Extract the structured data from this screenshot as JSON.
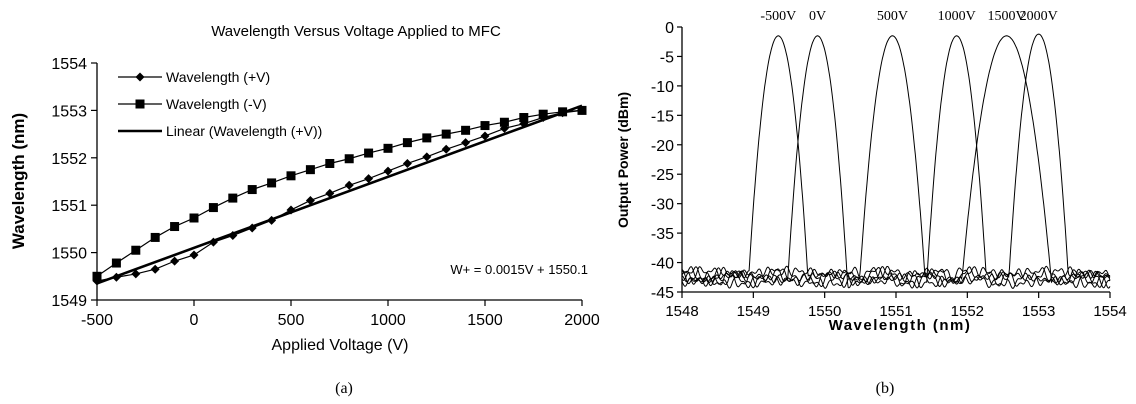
{
  "chart_data": [
    {
      "type": "line",
      "title": "Wavelength Versus Voltage Applied to MFC",
      "xlabel": "Applied Voltage (V)",
      "ylabel": "Wavelength (nm)",
      "xlim": [
        -500,
        2000
      ],
      "ylim": [
        1549,
        1554
      ],
      "x_ticks": [
        "-500",
        "0",
        "500",
        "1000",
        "1500",
        "2000"
      ],
      "y_ticks": [
        "1549",
        "1550",
        "1551",
        "1552",
        "1553",
        "1554"
      ],
      "grid": false,
      "legend_position": "top-left",
      "series": [
        {
          "name": "Wavelength (+V)",
          "marker": "diamond",
          "x": [
            -500,
            -400,
            -300,
            -200,
            -100,
            0,
            100,
            200,
            300,
            400,
            500,
            600,
            700,
            800,
            900,
            1000,
            1100,
            1200,
            1300,
            1400,
            1500,
            1600,
            1700,
            1800,
            1900,
            2000
          ],
          "y": [
            1549.4,
            1549.48,
            1549.55,
            1549.65,
            1549.82,
            1549.95,
            1550.22,
            1550.36,
            1550.52,
            1550.68,
            1550.9,
            1551.1,
            1551.25,
            1551.42,
            1551.56,
            1551.72,
            1551.88,
            1552.02,
            1552.18,
            1552.32,
            1552.46,
            1552.62,
            1552.72,
            1552.85,
            1552.95,
            1553.0
          ]
        },
        {
          "name": "Wavelength (-V)",
          "marker": "square",
          "x": [
            -500,
            -400,
            -300,
            -200,
            -100,
            0,
            100,
            200,
            300,
            400,
            500,
            600,
            700,
            800,
            900,
            1000,
            1100,
            1200,
            1300,
            1400,
            1500,
            1600,
            1700,
            1800,
            1900,
            2000
          ],
          "y": [
            1549.5,
            1549.78,
            1550.05,
            1550.32,
            1550.55,
            1550.73,
            1550.95,
            1551.15,
            1551.33,
            1551.47,
            1551.62,
            1551.75,
            1551.88,
            1551.98,
            1552.1,
            1552.2,
            1552.32,
            1552.42,
            1552.5,
            1552.58,
            1552.68,
            1552.75,
            1552.85,
            1552.92,
            1552.97,
            1553.0
          ]
        },
        {
          "name": "Linear (Wavelength (+V))",
          "marker": "none",
          "x": [
            -500,
            2000
          ],
          "y": [
            1549.35,
            1553.1
          ]
        }
      ],
      "annotations": [
        "W+ = 0.0015V + 1550.1"
      ],
      "caption": "(a)"
    },
    {
      "type": "line",
      "title": "",
      "xlabel": "Wavelength (nm)",
      "ylabel": "Output Power (dBm)",
      "xlim": [
        1548,
        1554
      ],
      "ylim": [
        -45,
        0
      ],
      "x_ticks": [
        "1548",
        "1549",
        "1550",
        "1551",
        "1552",
        "1553",
        "1554"
      ],
      "y_ticks": [
        "0",
        "-5",
        "-10",
        "-15",
        "-20",
        "-25",
        "-30",
        "-35",
        "-40",
        "-45"
      ],
      "grid": false,
      "peak_labels": [
        "-500V",
        "0V",
        "500V",
        "1000V",
        "1500V",
        "2000V"
      ],
      "series": [
        {
          "center": 1549.35,
          "peak": -1.5,
          "halfwidth": 0.2
        },
        {
          "center": 1549.9,
          "peak": -1.5,
          "halfwidth": 0.2
        },
        {
          "center": 1550.95,
          "peak": -1.5,
          "halfwidth": 0.22
        },
        {
          "center": 1551.85,
          "peak": -1.5,
          "halfwidth": 0.2
        },
        {
          "center": 1552.55,
          "peak": -1.5,
          "halfwidth": 0.3
        },
        {
          "center": 1553.0,
          "peak": -1.2,
          "halfwidth": 0.2
        }
      ],
      "noise_floor": -42.5,
      "caption": "(b)"
    }
  ]
}
